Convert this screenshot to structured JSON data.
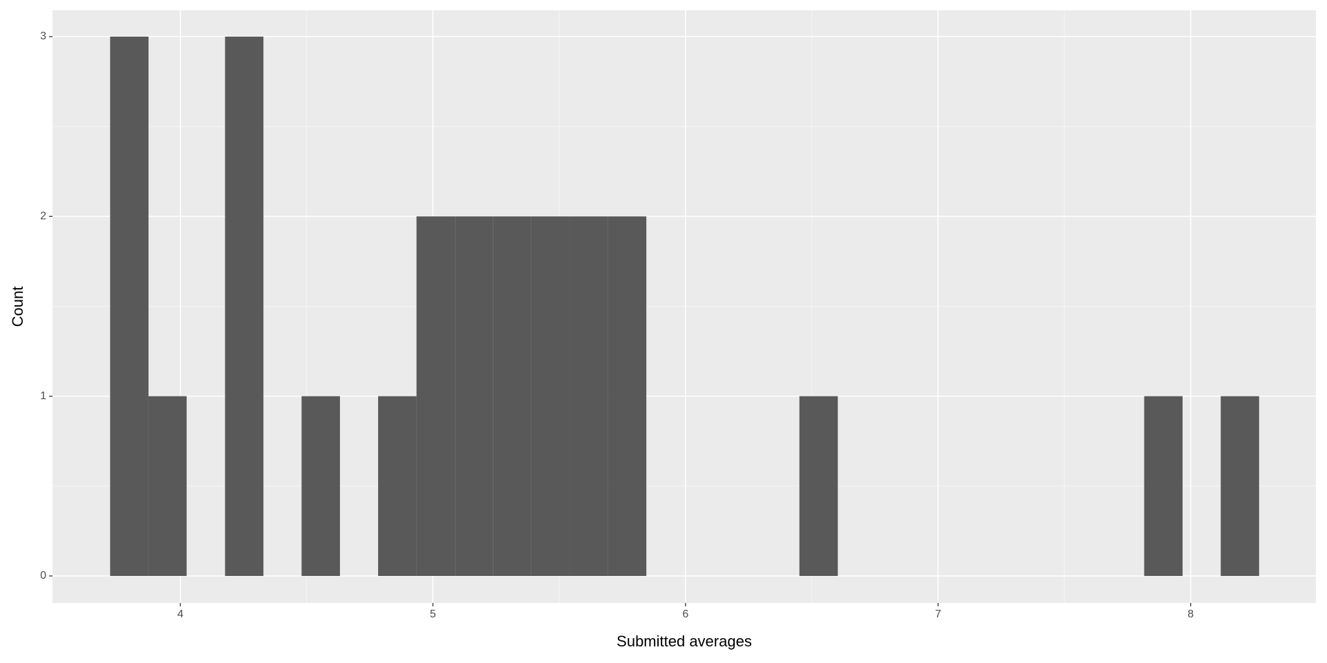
{
  "chart_data": {
    "type": "histogram",
    "x_label": "Submitted averages",
    "y_label": "Count",
    "bins": [
      3.722,
      3.874,
      4.025,
      4.177,
      4.329,
      4.48,
      4.632,
      4.783,
      4.935,
      5.087,
      5.238,
      5.39,
      5.542,
      5.693,
      5.845,
      5.996,
      6.148,
      6.3,
      6.451,
      6.603,
      6.755,
      6.906,
      7.058,
      7.209,
      7.361,
      7.513,
      7.664,
      7.816,
      7.968,
      8.119,
      8.271
    ],
    "values": [
      3,
      1,
      0,
      3,
      0,
      1,
      0,
      1,
      2,
      2,
      2,
      2,
      2,
      2,
      0,
      0,
      0,
      0,
      1,
      0,
      0,
      0,
      0,
      0,
      0,
      0,
      0,
      1,
      0,
      1
    ],
    "color": "#595959",
    "xlim": [
      3.494,
      8.496
    ],
    "xticks": [
      4,
      5,
      6,
      7,
      8
    ],
    "ylim": [
      -0.15,
      3.146
    ],
    "yticks": [
      0,
      1,
      2,
      3
    ],
    "grid": true,
    "minor_grid": true
  }
}
